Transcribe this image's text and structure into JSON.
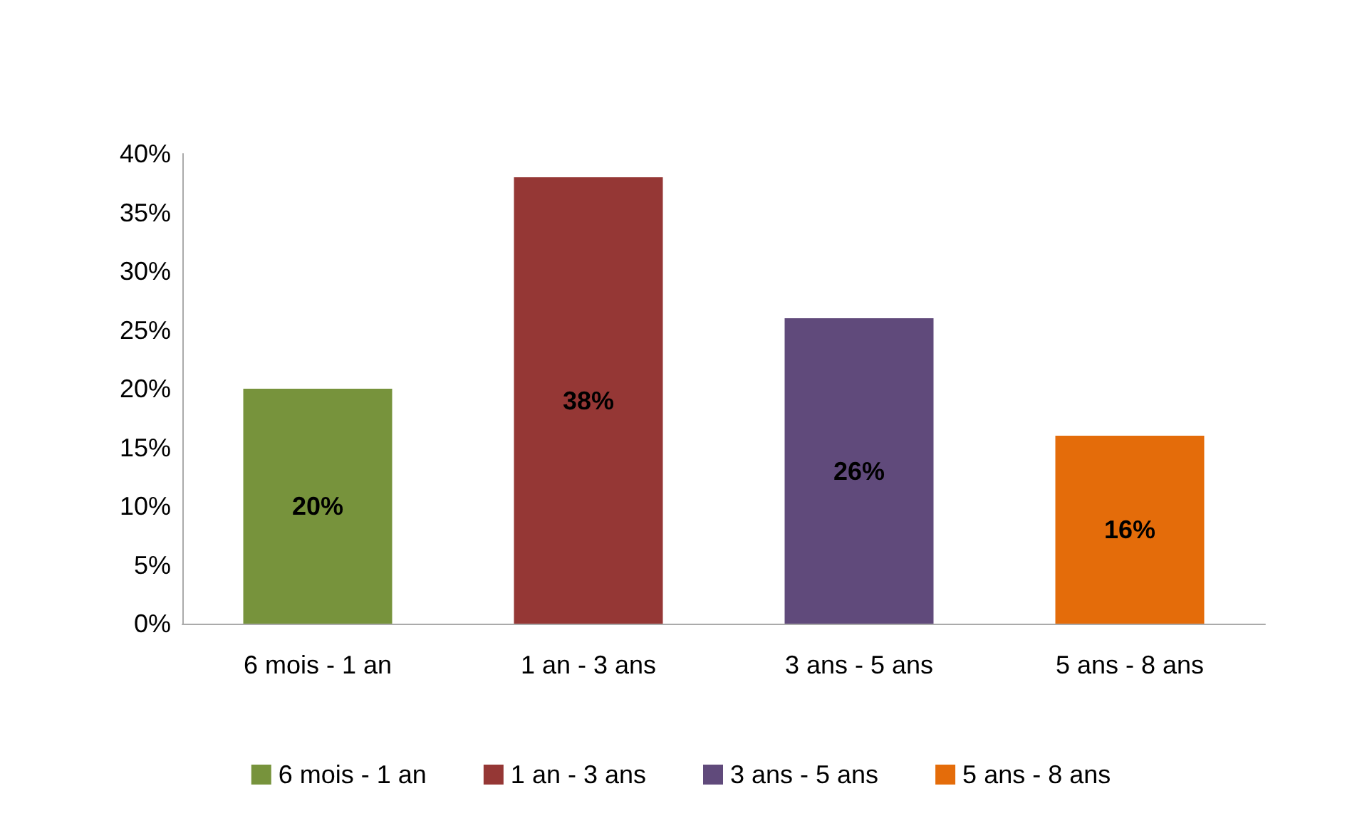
{
  "chart_data": {
    "type": "bar",
    "categories": [
      "6 mois - 1 an",
      "1 an - 3 ans",
      "3 ans - 5 ans",
      "5 ans - 8 ans"
    ],
    "series": [
      {
        "name": "6 mois - 1 an",
        "color": "#77933c",
        "values": [
          20,
          null,
          null,
          null
        ],
        "value_labels": [
          "20%",
          null,
          null,
          null
        ]
      },
      {
        "name": "1 an - 3 ans",
        "color": "#953735",
        "values": [
          null,
          38,
          null,
          null
        ],
        "value_labels": [
          null,
          "38%",
          null,
          null
        ]
      },
      {
        "name": "3 ans - 5 ans",
        "color": "#604a7b",
        "values": [
          null,
          null,
          26,
          null
        ],
        "value_labels": [
          null,
          null,
          "26%",
          null
        ]
      },
      {
        "name": "5 ans - 8 ans",
        "color": "#e46c0a",
        "values": [
          null,
          null,
          null,
          16
        ],
        "value_labels": [
          null,
          null,
          null,
          "16%"
        ]
      }
    ],
    "ylim": [
      0,
      40
    ],
    "yticks": [
      {
        "value": 0,
        "label": "0%"
      },
      {
        "value": 5,
        "label": "5%"
      },
      {
        "value": 10,
        "label": "10%"
      },
      {
        "value": 15,
        "label": "15%"
      },
      {
        "value": 20,
        "label": "20%"
      },
      {
        "value": 25,
        "label": "25%"
      },
      {
        "value": 30,
        "label": "30%"
      },
      {
        "value": 35,
        "label": "35%"
      },
      {
        "value": 40,
        "label": "40%"
      }
    ],
    "legend": "bottom"
  }
}
